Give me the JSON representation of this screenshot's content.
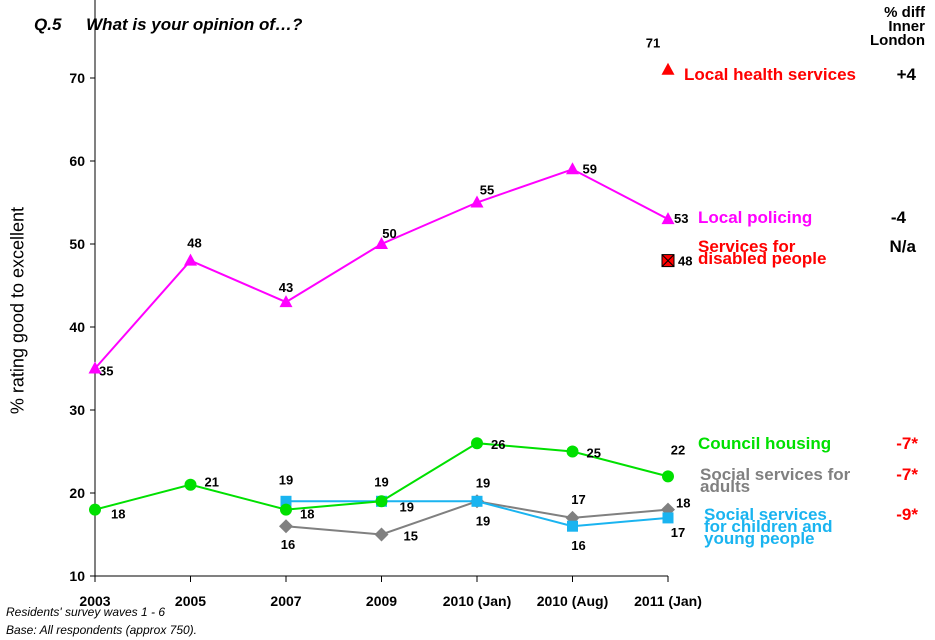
{
  "question": {
    "number": "Q.5",
    "text": "What is your opinion of…?"
  },
  "diff_header": [
    "% diff",
    "Inner",
    "London"
  ],
  "footer": {
    "source": "Residents' survey  waves 1 - 6",
    "base": "Base: All respondents (approx 750)."
  },
  "colors": {
    "local_health": "#ff0000",
    "local_policing": "#ff00ff",
    "disabled": "#ff0000",
    "council_housing": "#00e000",
    "social_adults": "#808080",
    "social_children": "#1ab4f0",
    "diff_negative": "#ff0000",
    "diff_neutral": "#000000"
  },
  "chart_data": {
    "type": "line",
    "ylabel": "% rating good to excellent",
    "ylim": [
      10,
      75
    ],
    "yticks": [
      10,
      20,
      30,
      40,
      50,
      60,
      70
    ],
    "categories": [
      "2003",
      "2005",
      "2007",
      "2009",
      "2010 (Jan)",
      "2010 (Aug)",
      "2011 (Jan)"
    ],
    "grid": false,
    "legend": "right (labels beside series end points)",
    "series": [
      {
        "name": "Local health services",
        "key": "local_health",
        "marker": "triangle",
        "values": [
          null,
          null,
          null,
          null,
          null,
          null,
          71
        ],
        "labels": [
          "",
          "",
          "",
          "",
          "",
          "",
          "71"
        ],
        "diff": "+4"
      },
      {
        "name": "Local policing",
        "key": "local_policing",
        "marker": "triangle",
        "values": [
          35,
          48,
          43,
          50,
          55,
          59,
          53
        ],
        "labels": [
          "35",
          "48",
          "43",
          "50",
          "55",
          "59",
          "53"
        ],
        "diff": "-4"
      },
      {
        "name": "Services for disabled people",
        "name_lines": [
          "Services for",
          "disabled people"
        ],
        "key": "disabled",
        "marker": "xsquare",
        "values": [
          null,
          null,
          null,
          null,
          null,
          null,
          48
        ],
        "labels": [
          "",
          "",
          "",
          "",
          "",
          "",
          "48"
        ],
        "diff": "N/a"
      },
      {
        "name": "Council housing",
        "key": "council_housing",
        "marker": "circle",
        "values": [
          18,
          21,
          18,
          19,
          26,
          25,
          22
        ],
        "labels": [
          "18",
          "21",
          "18",
          "19",
          "26",
          "25",
          "22"
        ],
        "diff": "-7*"
      },
      {
        "name": "Social services for adults",
        "name_lines": [
          "Social services for",
          "adults"
        ],
        "key": "social_adults",
        "marker": "diamond",
        "values": [
          null,
          null,
          16,
          15,
          19,
          17,
          18
        ],
        "labels": [
          "",
          "",
          "16",
          "15",
          "19",
          "17",
          "18"
        ],
        "diff": "-7*"
      },
      {
        "name": "Social services for children and young people",
        "name_lines": [
          "Social services",
          "for children and",
          "young people"
        ],
        "key": "social_children",
        "marker": "square",
        "values": [
          null,
          null,
          19,
          19,
          19,
          16,
          17
        ],
        "labels": [
          "",
          "",
          "19",
          "19",
          "19",
          "16",
          "17"
        ],
        "diff": "-9*"
      }
    ]
  }
}
